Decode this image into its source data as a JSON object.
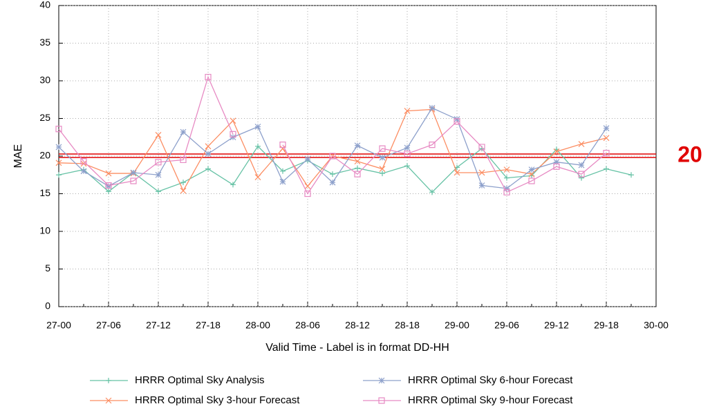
{
  "chart_data": {
    "type": "line",
    "xlabel": "Valid Time - Label is in format DD-HH",
    "ylabel": "MAE",
    "categories": [
      "27-00",
      null,
      "27-06",
      null,
      "27-12",
      null,
      "27-18",
      null,
      "28-00",
      null,
      "28-06",
      null,
      "28-12",
      null,
      "28-18",
      null,
      "29-00",
      null,
      "29-06",
      null,
      "29-12",
      null,
      "29-18",
      null,
      "30-00"
    ],
    "ylim": [
      0,
      40
    ],
    "yticks": [
      0,
      5,
      10,
      15,
      20,
      25,
      30,
      35,
      40
    ],
    "grid": true,
    "reference_line": {
      "value": 20,
      "label": "20",
      "color": "#e00000"
    },
    "series": [
      {
        "name": "HRRR Optimal Sky Analysis",
        "color": "#66c2a5",
        "marker": "plus",
        "values": [
          17.5,
          18.2,
          15.3,
          17.8,
          15.3,
          16.5,
          18.3,
          16.2,
          21.3,
          18.0,
          19.4,
          17.6,
          18.4,
          17.7,
          18.7,
          15.2,
          18.5,
          21.0,
          17.1,
          17.4,
          20.9,
          17.1,
          18.3,
          17.5,
          null
        ]
      },
      {
        "name": "HRRR Optimal Sky 3-hour Forecast",
        "color": "#fc8d62",
        "marker": "cross",
        "values": [
          19.1,
          19.0,
          17.7,
          17.7,
          22.8,
          15.4,
          21.3,
          24.7,
          17.2,
          21.0,
          16.0,
          20.0,
          19.3,
          18.3,
          26.0,
          26.2,
          17.8,
          17.8,
          18.2,
          17.6,
          20.6,
          21.6,
          22.4,
          null,
          null
        ]
      },
      {
        "name": "HRRR Optimal Sky 6-hour Forecast",
        "color": "#8da0cb",
        "marker": "star",
        "values": [
          21.2,
          18.0,
          16.0,
          17.8,
          17.5,
          23.2,
          20.3,
          22.5,
          23.9,
          16.6,
          19.6,
          16.5,
          21.4,
          19.8,
          21.1,
          26.4,
          24.9,
          16.1,
          15.7,
          18.2,
          19.2,
          18.8,
          23.7,
          null,
          null
        ]
      },
      {
        "name": "HRRR Optimal Sky 9-hour Forecast",
        "color": "#e78ac3",
        "marker": "square",
        "values": [
          23.6,
          19.3,
          16.1,
          16.7,
          19.2,
          19.5,
          30.5,
          22.9,
          null,
          21.5,
          15.0,
          20.0,
          17.6,
          21.0,
          20.3,
          21.5,
          24.6,
          21.2,
          15.2,
          16.7,
          18.6,
          17.6,
          20.4,
          null,
          null
        ]
      }
    ]
  }
}
